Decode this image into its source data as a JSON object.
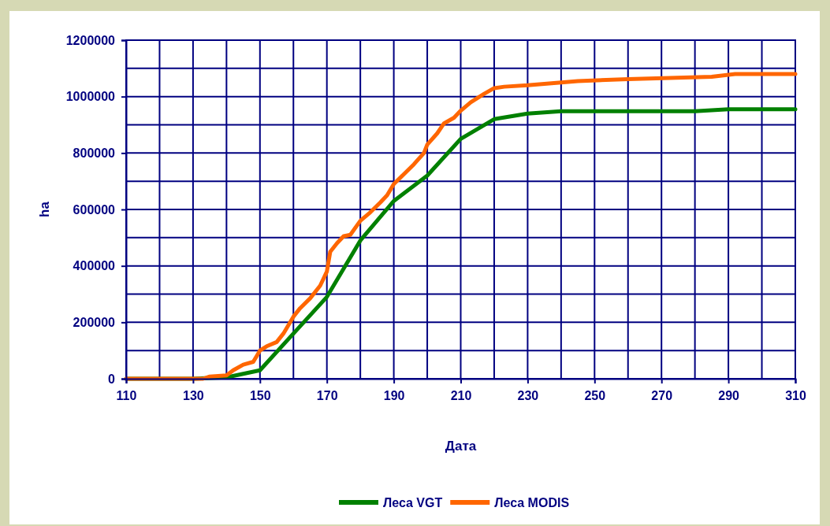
{
  "chart_data": {
    "type": "line",
    "xlabel": "Дата",
    "ylabel": "ha",
    "xlim": [
      110,
      310
    ],
    "xticks": [
      110,
      130,
      150,
      170,
      190,
      210,
      230,
      250,
      270,
      290,
      310
    ],
    "ylim": [
      0,
      1200000
    ],
    "yticks": [
      0,
      200000,
      400000,
      600000,
      800000,
      1000000,
      1200000
    ],
    "grid": true,
    "legend": "bottom",
    "marker": "none",
    "line_style": "solid",
    "series": [
      {
        "name": "Леса VGT",
        "color": "#008000",
        "x": [
          110,
          130,
          140,
          150,
          160,
          170,
          180,
          190,
          200,
          210,
          220,
          230,
          240,
          250,
          260,
          270,
          280,
          290,
          300,
          310
        ],
        "values": [
          0,
          0,
          5000,
          30000,
          160000,
          290000,
          490000,
          630000,
          720000,
          850000,
          920000,
          940000,
          948000,
          948000,
          948000,
          948000,
          948000,
          955000,
          955000,
          955000
        ]
      },
      {
        "name": "Леса MODIS",
        "color": "#ff6600",
        "x": [
          110,
          133,
          135,
          140,
          142,
          145,
          148,
          150,
          152,
          155,
          157,
          160,
          162,
          165,
          168,
          170,
          171,
          173,
          175,
          177,
          180,
          183,
          186,
          188,
          190,
          193,
          196,
          199,
          200,
          203,
          205,
          208,
          210,
          213,
          217,
          220,
          223,
          230,
          235,
          245,
          260,
          285,
          292,
          310
        ],
        "values": [
          0,
          0,
          8000,
          12000,
          30000,
          50000,
          60000,
          100000,
          115000,
          130000,
          160000,
          220000,
          250000,
          285000,
          330000,
          380000,
          450000,
          480000,
          505000,
          510000,
          560000,
          590000,
          625000,
          650000,
          690000,
          725000,
          760000,
          800000,
          830000,
          870000,
          905000,
          925000,
          950000,
          980000,
          1010000,
          1030000,
          1035000,
          1040000,
          1045000,
          1055000,
          1062000,
          1070000,
          1080000,
          1080000
        ]
      }
    ]
  }
}
